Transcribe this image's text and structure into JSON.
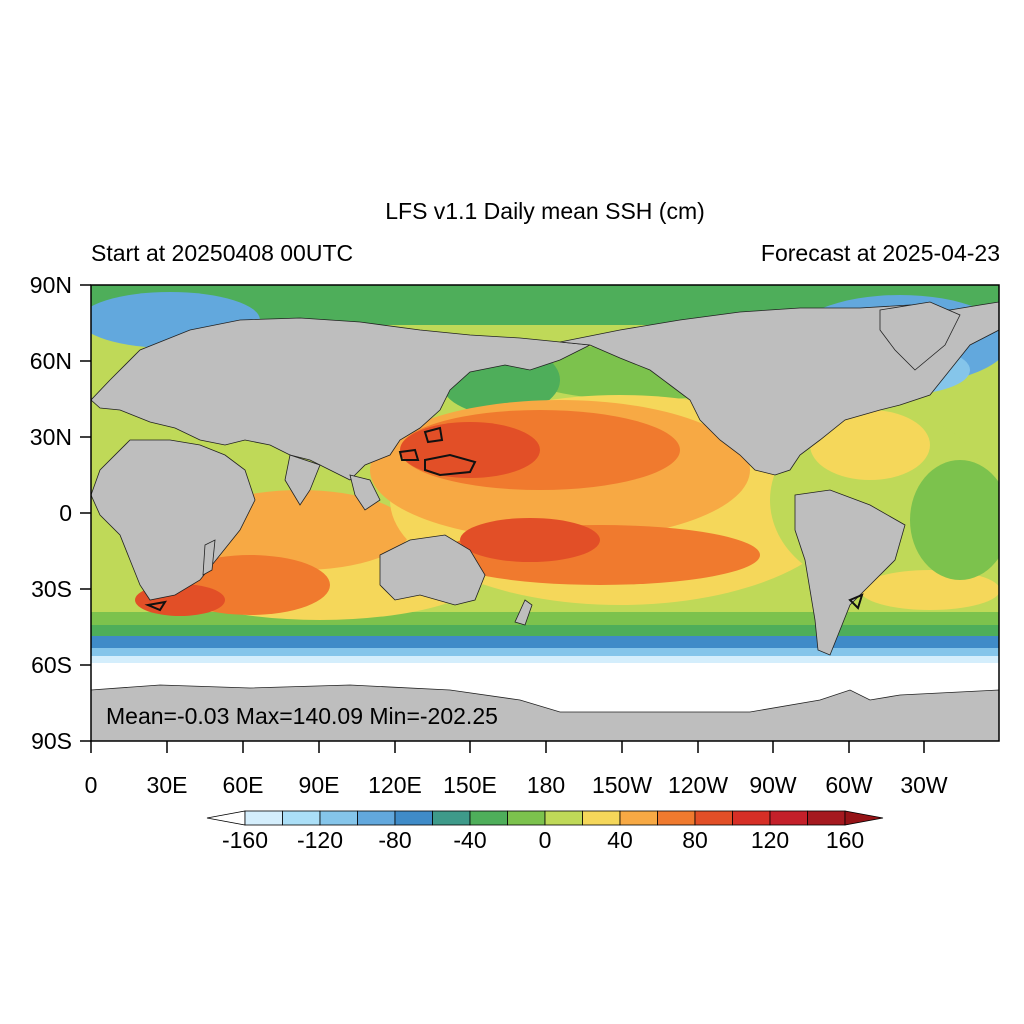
{
  "title": "LFS v1.1 Daily mean SSH (cm)",
  "left_subtitle": "Start at 20250408 00UTC",
  "right_subtitle": "Forecast at 2025-04-23",
  "stats_text": "Mean=-0.03  Max=140.09  Min=-202.25",
  "lat_labels": [
    "90N",
    "60N",
    "30N",
    "0",
    "30S",
    "60S",
    "90S"
  ],
  "lon_labels": [
    "0",
    "30E",
    "60E",
    "90E",
    "120E",
    "150E",
    "180",
    "150W",
    "120W",
    "90W",
    "60W",
    "30W"
  ],
  "colorbar": {
    "labels": [
      "-160",
      "-120",
      "-80",
      "-40",
      "0",
      "40",
      "80",
      "120",
      "160"
    ],
    "colors": [
      "#ffffff",
      "#d4eefc",
      "#abdff7",
      "#85c5ea",
      "#62a8dd",
      "#3f8bc8",
      "#3e9a8a",
      "#4eae5a",
      "#7cc24d",
      "#bfd958",
      "#f5d75a",
      "#f7a944",
      "#f07a2e",
      "#e24f27",
      "#d62f26",
      "#c4202a",
      "#a5191f",
      "#951317"
    ]
  },
  "colors": {
    "land": "#bebebe",
    "ocean_background": "#bfd958",
    "coastline": "#222222"
  }
}
